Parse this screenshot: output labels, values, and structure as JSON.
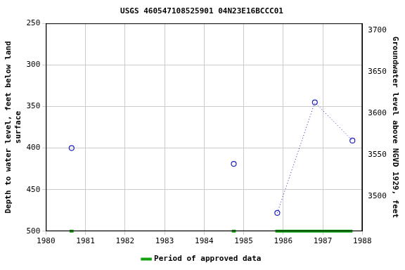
{
  "chart_data": {
    "type": "line",
    "title": "USGS 460547108525901 04N23E16BCCC01",
    "y_label": [
      "Depth to water level, feet below land",
      "surface"
    ],
    "y2_label": "Groundwater level above NGVD 1929, feet",
    "x": [
      1980.65,
      1980.65,
      1984.75,
      1984.75,
      1985.85,
      1986.8,
      1987.75
    ],
    "series": [
      {
        "color": "#2020c0",
        "marker": "circle",
        "line_style": "dotted",
        "values": [
          400,
          null,
          419,
          null,
          478,
          345,
          391
        ]
      }
    ],
    "approved_periods": {
      "name": "Period of approved data",
      "color": "#10a010",
      "ranges": [
        [
          1980.6,
          1980.7
        ],
        [
          1984.7,
          1984.8
        ],
        [
          1985.8,
          1987.75
        ]
      ]
    },
    "xlim": [
      1980,
      1988
    ],
    "xticks": [
      1980,
      1981,
      1982,
      1983,
      1984,
      1985,
      1986,
      1987,
      1988
    ],
    "ylim": [
      500,
      250
    ],
    "yticks": [
      250,
      300,
      350,
      400,
      450,
      500
    ],
    "y2lim": [
      3458,
      3708
    ],
    "y2ticks": [
      3500,
      3550,
      3600,
      3650,
      3700
    ],
    "grid": true,
    "legend": "bottom"
  }
}
